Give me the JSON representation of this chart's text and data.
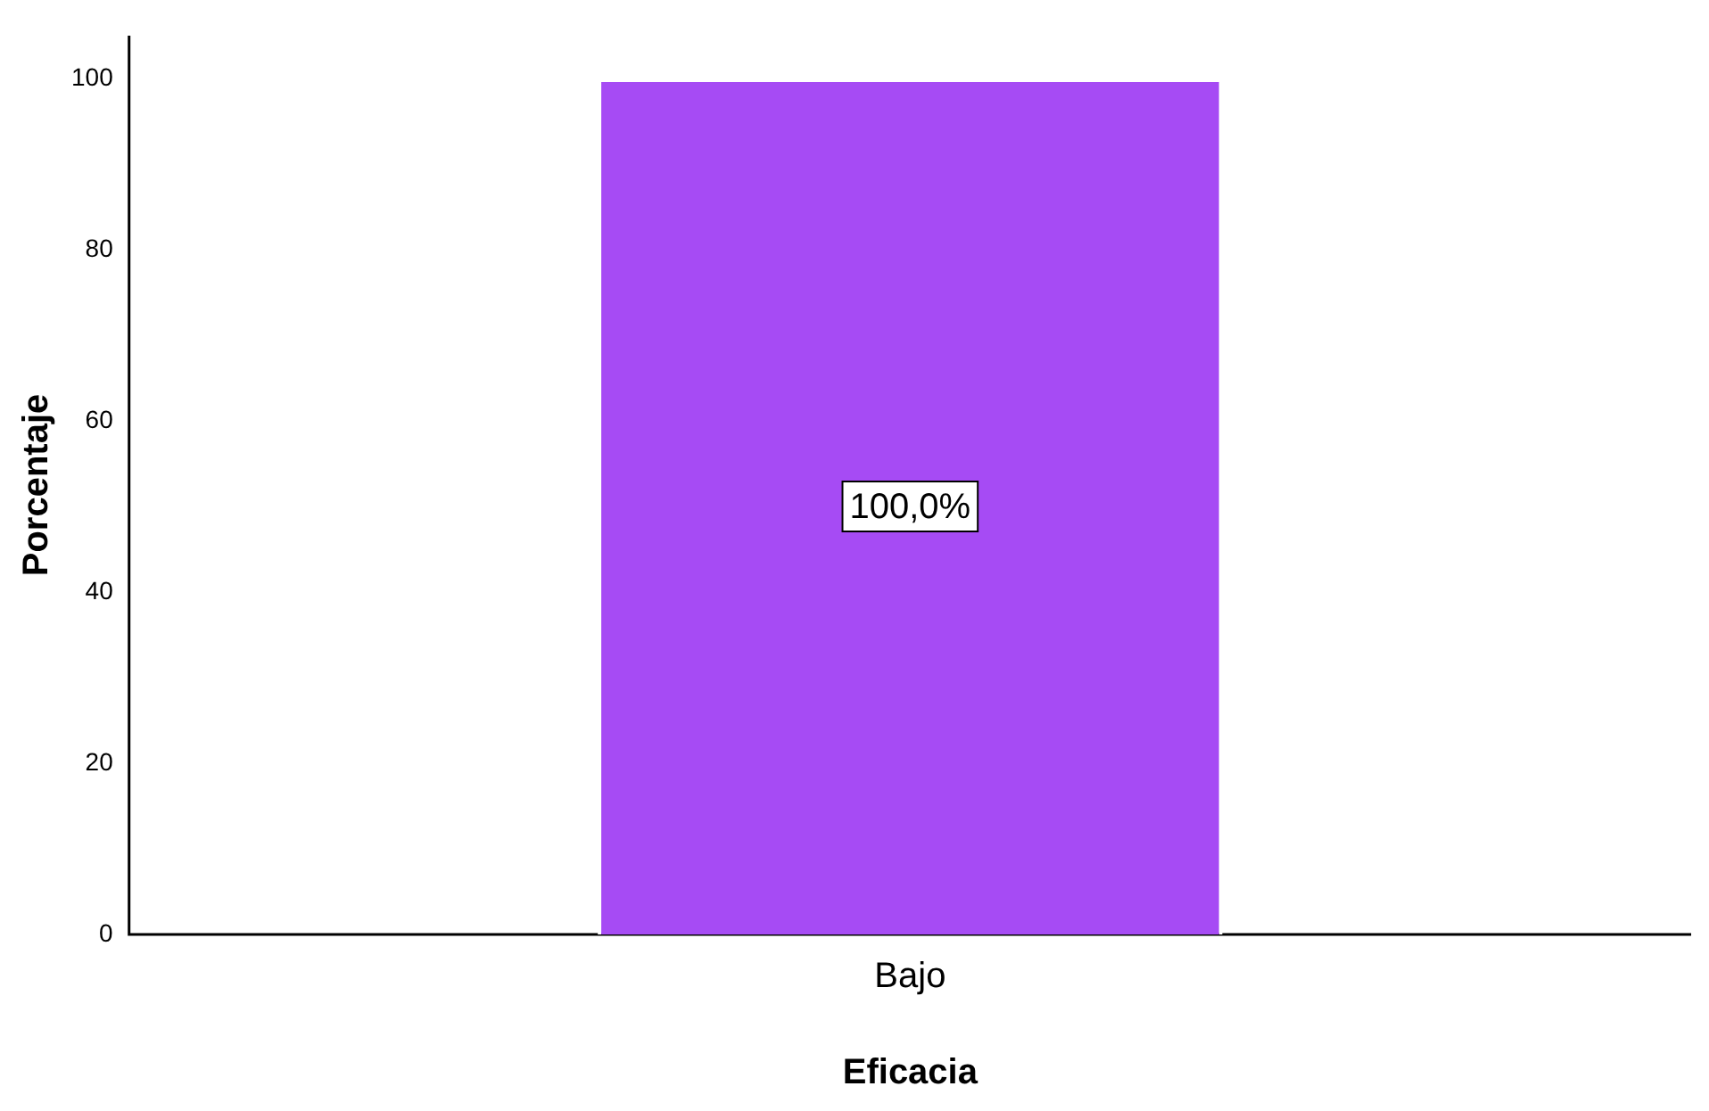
{
  "chart_data": {
    "type": "bar",
    "xlabel": "Eficacia",
    "ylabel": "Porcentaje",
    "categories": [
      "Bajo"
    ],
    "values": [
      100
    ],
    "color": "#a64bf4",
    "value_labels": [
      "100,0%"
    ],
    "ylim": [
      0,
      105
    ],
    "yticks": [
      0,
      20,
      40,
      60,
      80,
      100
    ],
    "grid": false,
    "legend": false
  }
}
